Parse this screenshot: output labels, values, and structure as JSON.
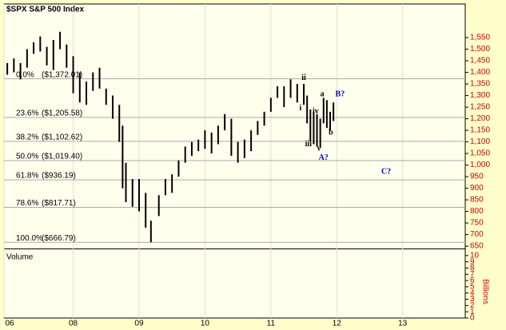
{
  "chart_data": {
    "type": "ohlc",
    "title": "$SPX S&P 500 Index",
    "color": "#000000",
    "x": [
      2007.0,
      2007.1,
      2007.2,
      2007.3,
      2007.4,
      2007.5,
      2007.6,
      2007.7,
      2007.8,
      2007.9,
      2008.0,
      2008.1,
      2008.2,
      2008.3,
      2008.4,
      2008.5,
      2008.6,
      2008.7,
      2008.75,
      2008.8,
      2008.9,
      2009.0,
      2009.1,
      2009.18,
      2009.3,
      2009.4,
      2009.5,
      2009.6,
      2009.7,
      2009.8,
      2009.9,
      2010.0,
      2010.1,
      2010.2,
      2010.3,
      2010.4,
      2010.5,
      2010.6,
      2010.7,
      2010.8,
      2010.9,
      2011.0,
      2011.1,
      2011.2,
      2011.3,
      2011.4,
      2011.5,
      2011.55,
      2011.6,
      2011.65,
      2011.7,
      2011.75,
      2011.8,
      2011.85,
      2011.9,
      2011.95
    ],
    "high": [
      1440,
      1460,
      1440,
      1500,
      1530,
      1555,
      1510,
      1540,
      1575,
      1520,
      1470,
      1400,
      1360,
      1400,
      1420,
      1330,
      1300,
      1260,
      1170,
      1010,
      940,
      940,
      880,
      760,
      870,
      940,
      960,
      1020,
      1080,
      1100,
      1110,
      1150,
      1140,
      1170,
      1220,
      1200,
      1100,
      1110,
      1150,
      1190,
      1230,
      1290,
      1340,
      1340,
      1370,
      1350,
      1350,
      1300,
      1240,
      1230,
      1220,
      1200,
      1290,
      1280,
      1230,
      1270
    ],
    "low": [
      1390,
      1400,
      1370,
      1420,
      1480,
      1490,
      1430,
      1410,
      1500,
      1420,
      1310,
      1270,
      1260,
      1320,
      1330,
      1260,
      1200,
      1100,
      900,
      840,
      820,
      800,
      730,
      667,
      780,
      870,
      880,
      950,
      1010,
      1040,
      1060,
      1070,
      1050,
      1090,
      1150,
      1040,
      1010,
      1030,
      1060,
      1130,
      1170,
      1230,
      1290,
      1250,
      1290,
      1270,
      1260,
      1180,
      1100,
      1090,
      1080,
      1075,
      1180,
      1160,
      1150,
      1190
    ],
    "ylim": [
      640,
      1695
    ],
    "yticks": [
      650,
      700,
      750,
      800,
      850,
      900,
      950,
      {
        "value": 1000,
        "label": "1,000"
      },
      {
        "value": 1050,
        "label": "1,050"
      },
      {
        "value": 1100,
        "label": "1,100"
      },
      {
        "value": 1150,
        "label": "1,150"
      },
      {
        "value": 1200,
        "label": "1,200"
      },
      {
        "value": 1250,
        "label": "1,250"
      },
      {
        "value": 1300,
        "label": "1,300"
      },
      {
        "value": 1350,
        "label": "1,350"
      },
      {
        "value": 1400,
        "label": "1,400"
      },
      {
        "value": 1450,
        "label": "1,450"
      },
      {
        "value": 1500,
        "label": "1,500"
      },
      {
        "value": 1550,
        "label": "1,550"
      }
    ],
    "xlim": [
      2006.95,
      2013.95
    ],
    "xticks": [
      {
        "value": 2006.95,
        "label": "06"
      },
      {
        "value": 2008,
        "label": "08"
      },
      {
        "value": 2009,
        "label": "09"
      },
      {
        "value": 2010,
        "label": "10"
      },
      {
        "value": 2011,
        "label": "11"
      },
      {
        "value": 2012,
        "label": "12"
      },
      {
        "value": 2013,
        "label": "13"
      }
    ],
    "volume_label": "Volume",
    "y2_label": "Billions",
    "y2lim": [
      0,
      11
    ],
    "y2ticks": [
      0,
      1,
      2,
      3,
      4,
      5,
      6,
      7,
      8,
      9,
      10
    ],
    "fib_levels": [
      {
        "label": "0.0%",
        "price_label": "($1,372.01)",
        "value": 1372.01
      },
      {
        "label": "23.6%",
        "price_label": "($1,205.58)",
        "value": 1205.58
      },
      {
        "label": "38.2%",
        "price_label": "($1,102.62)",
        "value": 1102.62
      },
      {
        "label": "50.0%",
        "price_label": "($1,019.40)",
        "value": 1019.4
      },
      {
        "label": "61.8%",
        "price_label": "($936.19)",
        "value": 936.19
      },
      {
        "label": "78.6%",
        "price_label": "($817.71)",
        "value": 817.71
      },
      {
        "label": "100.0%",
        "price_label": "($666.79)",
        "value": 666.79
      }
    ],
    "annotations": [
      {
        "text": "ii",
        "x": 2011.5,
        "y": 1375,
        "color": "#000000"
      },
      {
        "text": "i",
        "x": 2011.45,
        "y": 1245,
        "color": "#000000"
      },
      {
        "text": "iii",
        "x": 2011.57,
        "y": 1090,
        "color": "#000000"
      },
      {
        "text": "iv",
        "x": 2011.68,
        "y": 1230,
        "color": "#000000"
      },
      {
        "text": "v",
        "x": 2011.73,
        "y": 1070,
        "color": "#000000"
      },
      {
        "text": "a",
        "x": 2011.78,
        "y": 1305,
        "color": "#000000"
      },
      {
        "text": "b",
        "x": 2011.91,
        "y": 1140,
        "color": "#000000"
      },
      {
        "text": "A?",
        "x": 2011.8,
        "y": 1030,
        "color": "#0000cc"
      },
      {
        "text": "B?",
        "x": 2012.05,
        "y": 1305,
        "color": "#0000cc"
      },
      {
        "text": "C?",
        "x": 2012.75,
        "y": 970,
        "color": "#0000cc"
      }
    ]
  }
}
